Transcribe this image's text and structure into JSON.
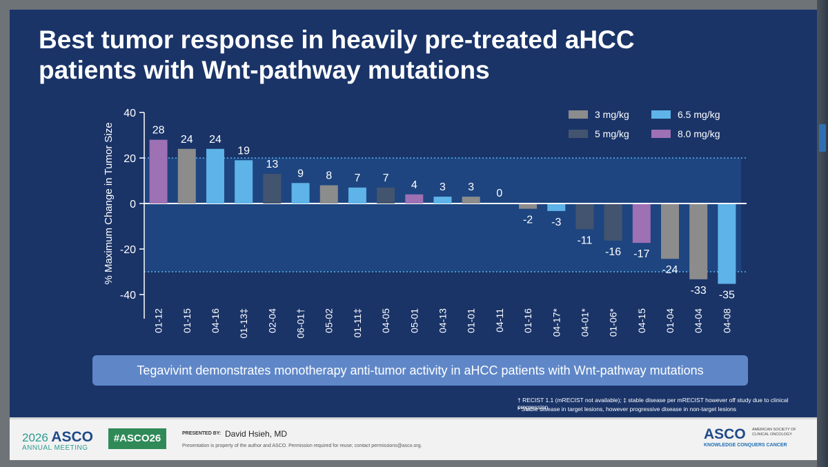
{
  "slide": {
    "title_line1": "Best tumor response in heavily pre-treated aHCC",
    "title_line2": "patients with Wnt-pathway mutations",
    "banner": "Tegavivint demonstrates monotherapy anti-tumor activity in aHCC patients with Wnt-pathway mutations",
    "footnote1": "† RECIST 1.1 (mRECIST not available); ‡ stable disease per mRECIST however off study due to clinical progression",
    "footnote2": "* Stable disease in target lesions, however progressive disease in non-target lesions"
  },
  "footer": {
    "meeting_year": "2026",
    "meeting_org": "ASCO",
    "meeting_sub": "ANNUAL MEETING",
    "hashtag": "#ASCO26",
    "presented_by": "PRESENTED BY:",
    "presenter": "David Hsieh, MD",
    "disclaimer": "Presentation is property of the author and ASCO. Permission required for reuse; contact permissions@asco.org.",
    "logo": "ASCO",
    "society": "AMERICAN SOCIETY OF CLINICAL ONCOLOGY",
    "tagline": "KNOWLEDGE CONQUERS CANCER"
  },
  "chart_data": {
    "type": "bar",
    "ylabel": "% Maximum Change in Tumor Size",
    "ylim": [
      -40,
      40
    ],
    "yticks": [
      40,
      20,
      0,
      -20,
      -40
    ],
    "reference_lines": [
      20,
      -30
    ],
    "categories": [
      "01-12",
      "01-15",
      "04-16",
      "01-13‡",
      "02-04",
      "06-01†",
      "05-02",
      "01-11‡",
      "04-05",
      "05-01",
      "04-13",
      "01-01",
      "04-11",
      "01-16",
      "04-17*",
      "04-01*",
      "01-06*",
      "04-15",
      "01-04",
      "04-04",
      "04-08"
    ],
    "values": [
      28,
      24,
      24,
      19,
      13,
      9,
      8,
      7,
      7,
      4,
      3,
      3,
      0,
      -2,
      -3,
      -11,
      -16,
      -17,
      -24,
      -33,
      -35
    ],
    "dose_index": [
      "8.0",
      "3",
      "6.5",
      "6.5",
      "5",
      "6.5",
      "3",
      "6.5",
      "5",
      "8.0",
      "6.5",
      "3",
      "5",
      "3",
      "6.5",
      "5",
      "5",
      "8.0",
      "3",
      "3",
      "6.5"
    ],
    "legend": [
      {
        "key": "3",
        "label": "3 mg/kg",
        "color": "#8c8c8c"
      },
      {
        "key": "6.5",
        "label": "6.5 mg/kg",
        "color": "#5eb3e8"
      },
      {
        "key": "5",
        "label": "5 mg/kg",
        "color": "#43546e"
      },
      {
        "key": "8.0",
        "label": "8.0 mg/kg",
        "color": "#9e70b4"
      }
    ]
  }
}
